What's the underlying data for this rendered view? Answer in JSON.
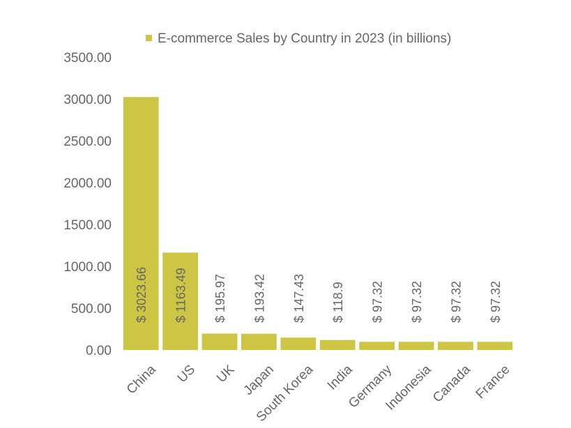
{
  "chart_data": {
    "type": "bar",
    "legend_position": "top",
    "grid": false,
    "categories": [
      "China",
      "US",
      "UK",
      "Japan",
      "South Korea",
      "India",
      "Germany",
      "Indonesia",
      "Canada",
      "France"
    ],
    "series": [
      {
        "name": "E-commerce Sales by Country in 2023 (in billions)",
        "color": "#cdc544",
        "values": [
          3023.66,
          1163.49,
          195.97,
          193.42,
          147.43,
          118.9,
          97.32,
          97.32,
          97.32,
          97.32
        ],
        "data_labels": [
          "$ 3023.66",
          "$ 1163.49",
          "$ 195.97",
          "$ 193.42",
          "$ 147.43",
          "$ 118.9",
          "$ 97.32",
          "$ 97.32",
          "$ 97.32",
          "$ 97.32"
        ]
      }
    ],
    "ylim": [
      0,
      3500
    ],
    "yticks": [
      "0.00",
      "500.00",
      "1000.00",
      "1500.00",
      "2000.00",
      "2500.00",
      "3000.00",
      "3500.00"
    ]
  }
}
